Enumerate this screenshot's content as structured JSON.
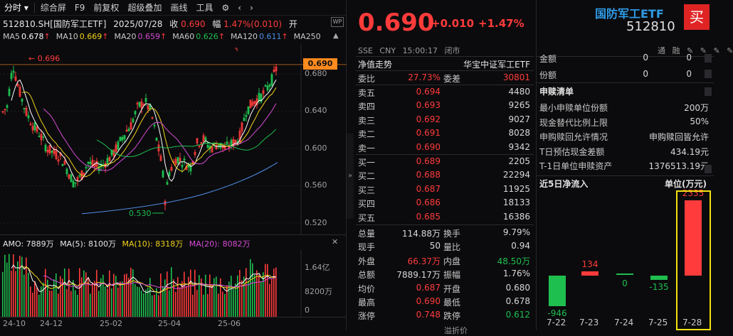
{
  "toolbar": {
    "items": [
      "分时",
      "综合屏",
      "F9",
      "前复权",
      "超级叠加",
      "画线",
      "工具"
    ]
  },
  "info": {
    "symbol": "512810.SH[国防军工ETF]",
    "date": "2025/07/28",
    "close_label": "收",
    "close_value": "0.690",
    "range_label": "幅",
    "range_value": "1.47%(0.010)",
    "open_label": "开"
  },
  "ma": [
    {
      "label": "MA5",
      "value": "0.678",
      "arrow": "↑",
      "color": "#ffffff"
    },
    {
      "label": "MA10",
      "value": "0.669",
      "arrow": "↑",
      "color": "#f1d21a"
    },
    {
      "label": "MA20",
      "value": "0.659",
      "arrow": "↑",
      "color": "#d64bd6"
    },
    {
      "label": "MA60",
      "value": "0.626",
      "arrow": "↑",
      "color": "#1fbf4f"
    },
    {
      "label": "MA120",
      "value": "0.611",
      "arrow": "↑",
      "color": "#4f8fe6"
    },
    {
      "label": "MA250",
      "value": "",
      "arrow": "",
      "color": "#c8c8c8"
    }
  ],
  "price_axis": [
    "0.680",
    "0.640",
    "0.600",
    "0.560",
    "0.520"
  ],
  "price_tag": "0.690",
  "high_marker": "0.696",
  "low_marker": "0.530",
  "amo": {
    "amo": "AMO: 7889万",
    "ma5": "MA(5): 8100万",
    "ma10": "MA(10): 8318万",
    "ma20": "MA(20): 8082万"
  },
  "vol_axis": [
    "1.64亿",
    "8200万",
    "0"
  ],
  "date_axis": [
    "24-10",
    "24-12",
    "25-02",
    "25-04",
    "25-06"
  ],
  "quote": {
    "last": "0.690",
    "change": "+0.010",
    "change_pct": "+1.47%",
    "status": [
      "SSE",
      "CNY",
      "15:00:17",
      "闭市"
    ],
    "nav_tab": "净值走势",
    "index_name": "华宝中证军工ETF",
    "weibi_label": "委比",
    "weibi_value": "27.73%",
    "weicha_label": "委差",
    "weicha_value": "30801",
    "asks": [
      {
        "label": "卖五",
        "price": "0.694",
        "vol": "4480"
      },
      {
        "label": "卖四",
        "price": "0.693",
        "vol": "9265"
      },
      {
        "label": "卖三",
        "price": "0.692",
        "vol": "9027"
      },
      {
        "label": "卖二",
        "price": "0.691",
        "vol": "8028"
      },
      {
        "label": "卖一",
        "price": "0.690",
        "vol": "9342"
      }
    ],
    "bids": [
      {
        "label": "买一",
        "price": "0.689",
        "vol": "2205"
      },
      {
        "label": "买二",
        "price": "0.688",
        "vol": "22294"
      },
      {
        "label": "买三",
        "price": "0.687",
        "vol": "11925"
      },
      {
        "label": "买四",
        "price": "0.686",
        "vol": "18133"
      },
      {
        "label": "买五",
        "price": "0.685",
        "vol": "16386"
      }
    ],
    "stats": [
      {
        "k1": "总量",
        "v1": "114.88万",
        "c1": "#d8d8d8",
        "k2": "换手",
        "v2": "9.79%",
        "c2": "#d8d8d8"
      },
      {
        "k1": "现手",
        "v1": "50",
        "c1": "#d8d8d8",
        "k2": "量比",
        "v2": "0.94",
        "c2": "#d8d8d8"
      },
      {
        "k1": "外盘",
        "v1": "66.37万",
        "c1": "#ff3b3b",
        "k2": "内盘",
        "v2": "48.50万",
        "c2": "#1fbf4f"
      },
      {
        "k1": "总额",
        "v1": "7889.17万",
        "c1": "#d8d8d8",
        "k2": "振幅",
        "v2": "1.76%",
        "c2": "#d8d8d8"
      },
      {
        "k1": "均价",
        "v1": "0.687",
        "c1": "#ff3b3b",
        "k2": "开盘",
        "v2": "0.680",
        "c2": "#d8d8d8"
      },
      {
        "k1": "最高",
        "v1": "0.690",
        "c1": "#ff3b3b",
        "k2": "最低",
        "v2": "0.678",
        "c2": "#d8d8d8"
      },
      {
        "k1": "涨停",
        "v1": "0.748",
        "c1": "#ff3b3b",
        "k2": "跌停",
        "v2": "0.612",
        "c2": "#1fbf4f"
      }
    ],
    "cut_text": "溢折价"
  },
  "right": {
    "etf_name": "国防军工ETF",
    "etf_code": "512810",
    "buy_label": "买",
    "tool_icons": [
      "通",
      "融",
      "✎",
      "✎",
      "✎",
      "✎"
    ],
    "top_rows": [
      {
        "k": "金额",
        "v1": "0",
        "v2": "0"
      },
      {
        "k": "份额",
        "v1": "0",
        "v2": "0"
      }
    ],
    "sgqd_title": "申赎清单",
    "sgqd_rows": [
      {
        "k": "最小申赎单位份额",
        "v": "200万"
      },
      {
        "k": "现金替代比例上限",
        "v": "50%"
      },
      {
        "k": "申购赎回允许情况",
        "v": "申购赎回皆允许"
      },
      {
        "k": "T日预估现金差额",
        "v": "434.19元"
      },
      {
        "k": "T-1日单位申赎资产",
        "v": "1376513.19元"
      }
    ],
    "flow_title": "近5日净流入",
    "flow_unit": "单位(万元)",
    "flow": [
      {
        "date": "7-22",
        "value": -946,
        "label": "-946"
      },
      {
        "date": "7-23",
        "value": 134,
        "label": "134"
      },
      {
        "date": "7-24",
        "value": 0,
        "label": "0"
      },
      {
        "date": "7-25",
        "value": -135,
        "label": "-135"
      },
      {
        "date": "7-28",
        "value": 2335,
        "label": "2335"
      }
    ]
  }
}
